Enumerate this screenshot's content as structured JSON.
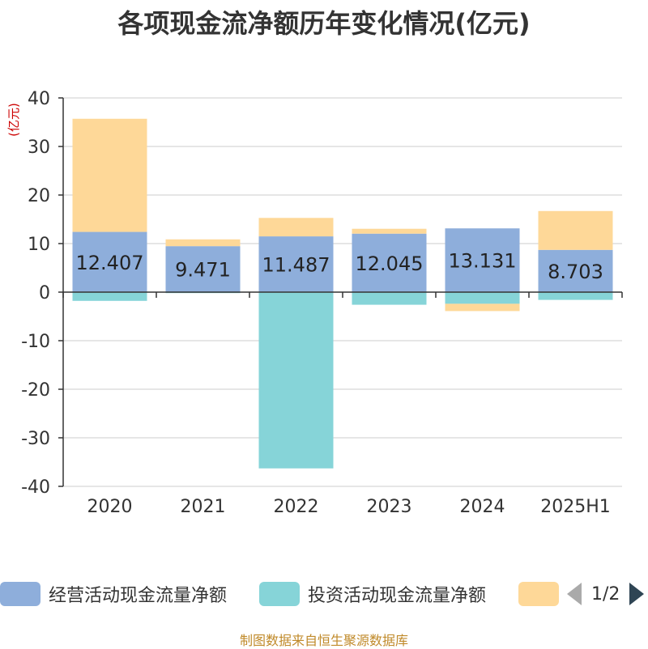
{
  "title": "各项现金流净额历年变化情况(亿元)",
  "source": "制图数据来自恒生聚源数据库",
  "legend": {
    "items": [
      {
        "label": "经营活动现金流量净额",
        "color": "#8eaedb"
      },
      {
        "label": "投资活动现金流量净额",
        "color": "#86d4d8"
      },
      {
        "label": "",
        "color": "#fed898"
      }
    ],
    "pager": "1/2"
  },
  "chart_data": {
    "type": "bar",
    "stacked": true,
    "categories": [
      "2020",
      "2021",
      "2022",
      "2023",
      "2024",
      "2025H1"
    ],
    "ylabel": "(亿元)",
    "ylim": [
      -40,
      40
    ],
    "yticks": [
      40,
      30,
      20,
      10,
      0,
      -10,
      -20,
      -30,
      -40
    ],
    "grid": true,
    "series": [
      {
        "name": "经营活动现金流量净额",
        "color": "#8eaedb",
        "values": [
          12.407,
          9.471,
          11.487,
          12.045,
          13.131,
          8.703
        ],
        "labels": [
          "12.407",
          "9.471",
          "11.487",
          "12.045",
          "13.131",
          "8.703"
        ]
      },
      {
        "name": "投资活动现金流量净额",
        "color": "#86d4d8",
        "values": [
          -1.8,
          -0.2,
          -36.3,
          -2.6,
          -2.4,
          -1.6
        ]
      },
      {
        "color": "#fed898",
        "values": [
          23.3,
          1.4,
          3.8,
          1.0,
          -1.5,
          8.0
        ]
      }
    ]
  }
}
